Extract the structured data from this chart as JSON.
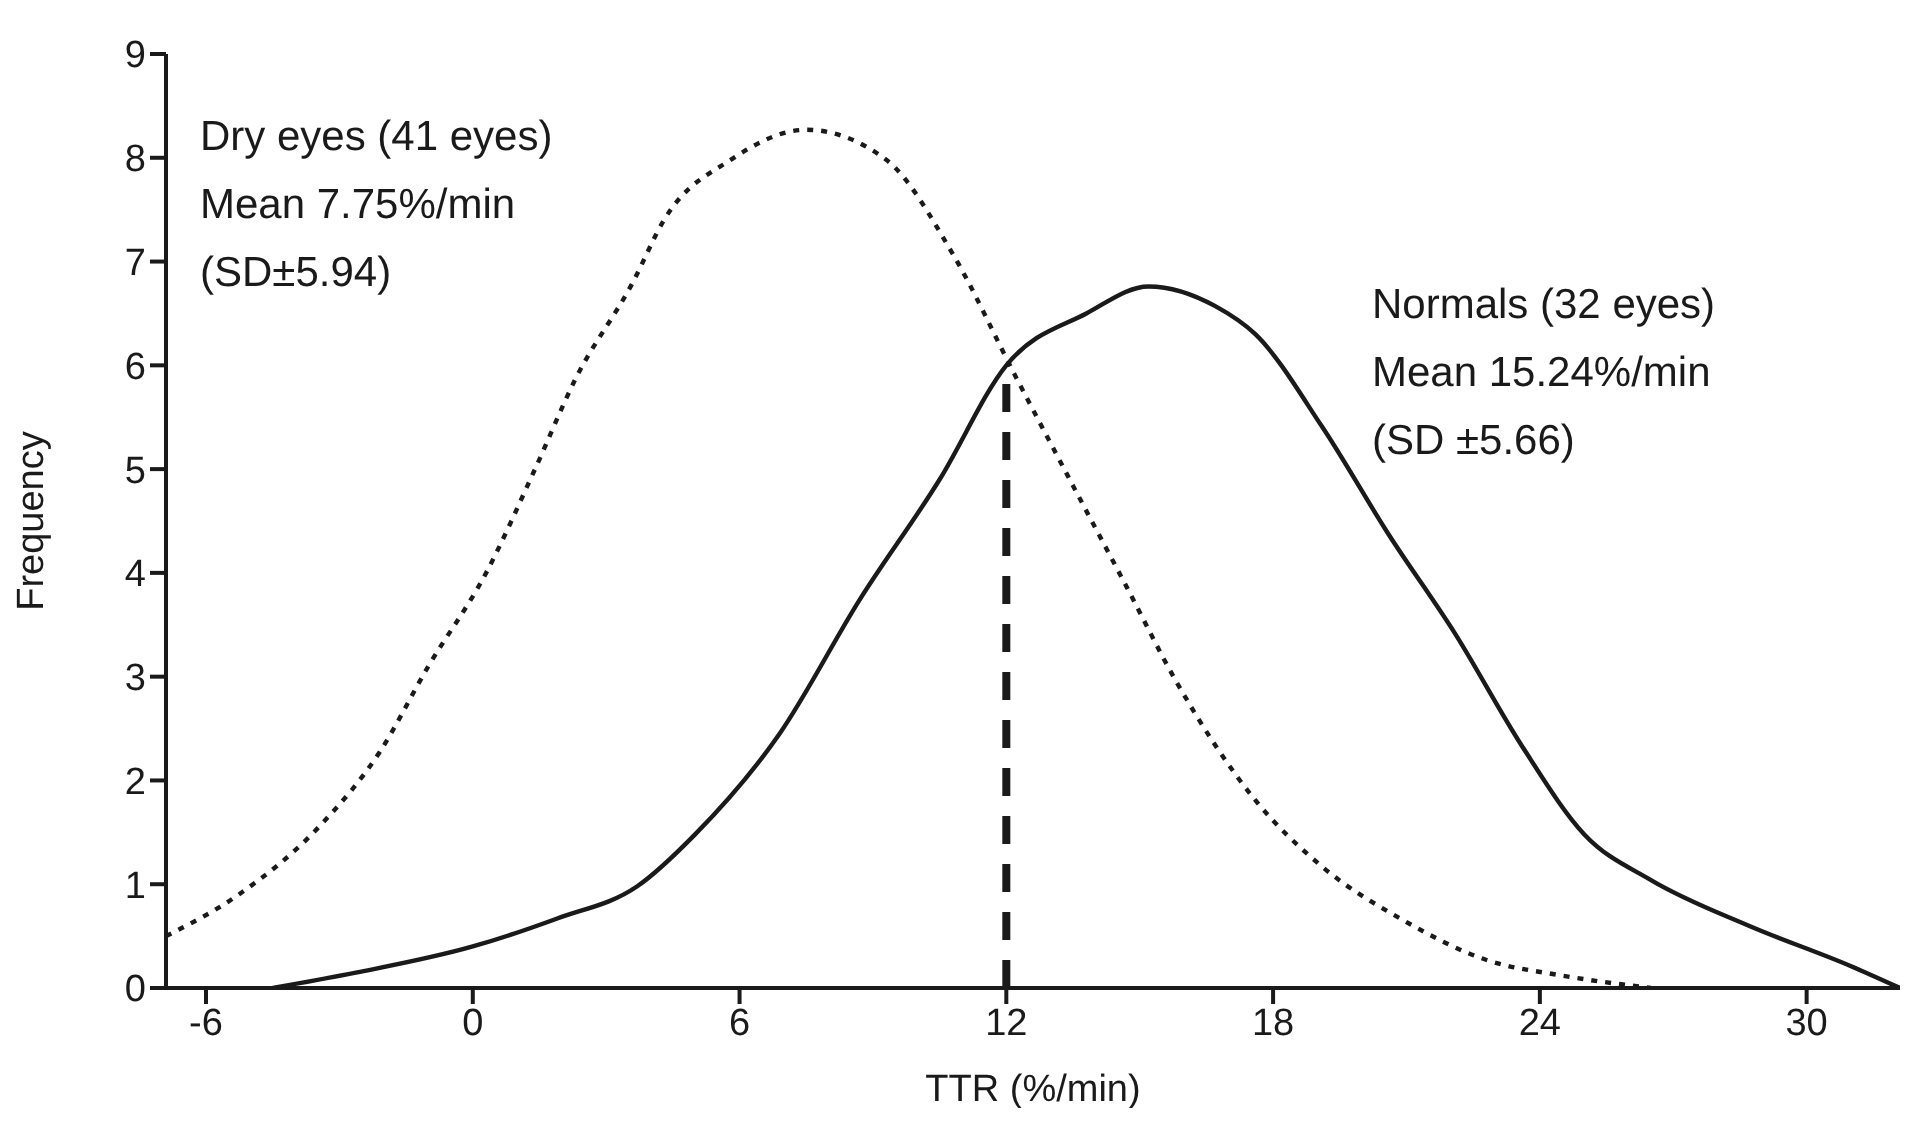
{
  "chart_data": {
    "type": "line",
    "xlabel": "TTR (%/min)",
    "ylabel": "Frequency",
    "xlim": [
      -6.9,
      32.1
    ],
    "xticks": [
      -6,
      0,
      6,
      12,
      18,
      24,
      30
    ],
    "ylim": [
      0,
      9
    ],
    "yticks": [
      0,
      1,
      2,
      3,
      4,
      5,
      6,
      7,
      8,
      9
    ],
    "marker": "none",
    "series": [
      {
        "color": "#1a1a1a",
        "line_style": "dotted",
        "x": [
          -6.9,
          -5.3,
          -3.4,
          -2.1,
          -1.0,
          0.3,
          1.4,
          2.3,
          3.6,
          4.3,
          5.8,
          7.5,
          9.3,
          10.8,
          12.2,
          13.5,
          14.7,
          15.8,
          17.6,
          19.1,
          20.9,
          22.8,
          24.5,
          26.5
        ],
        "values": [
          0.5,
          0.89,
          1.58,
          2.27,
          3.1,
          4.0,
          5.0,
          5.86,
          6.8,
          7.4,
          7.98,
          8.27,
          7.98,
          7.07,
          5.9,
          4.84,
          3.87,
          2.97,
          1.81,
          1.17,
          0.66,
          0.27,
          0.12,
          0
        ]
      },
      {
        "color": "#1a1a1a",
        "line_style": "solid",
        "x": [
          -4.5,
          -2.6,
          0,
          1.9,
          3.7,
          5.0,
          6.9,
          8.7,
          10.5,
          12,
          13.8,
          15.2,
          16.7,
          17.6,
          19.1,
          20.6,
          22.1,
          23.6,
          25.0,
          26.5,
          28.7,
          31.0,
          32.1
        ],
        "values": [
          0,
          0.15,
          0.4,
          0.67,
          0.98,
          1.48,
          2.45,
          3.74,
          4.9,
          6,
          6.5,
          6.76,
          6.57,
          6.3,
          5.41,
          4.37,
          3.41,
          2.33,
          1.48,
          1.04,
          0.6,
          0.21,
          0
        ]
      }
    ],
    "ref_lines": [
      {
        "axis": "x",
        "value": 12,
        "color": "#1a1a1a",
        "line_style": "dashed"
      }
    ],
    "annotations": [
      "Dry eyes (41 eyes)",
      "Mean 7.75%/min",
      "(SD±5.94)",
      "Normals (32 eyes)",
      "Mean 15.24%/min",
      "(SD ±5.66)"
    ]
  }
}
